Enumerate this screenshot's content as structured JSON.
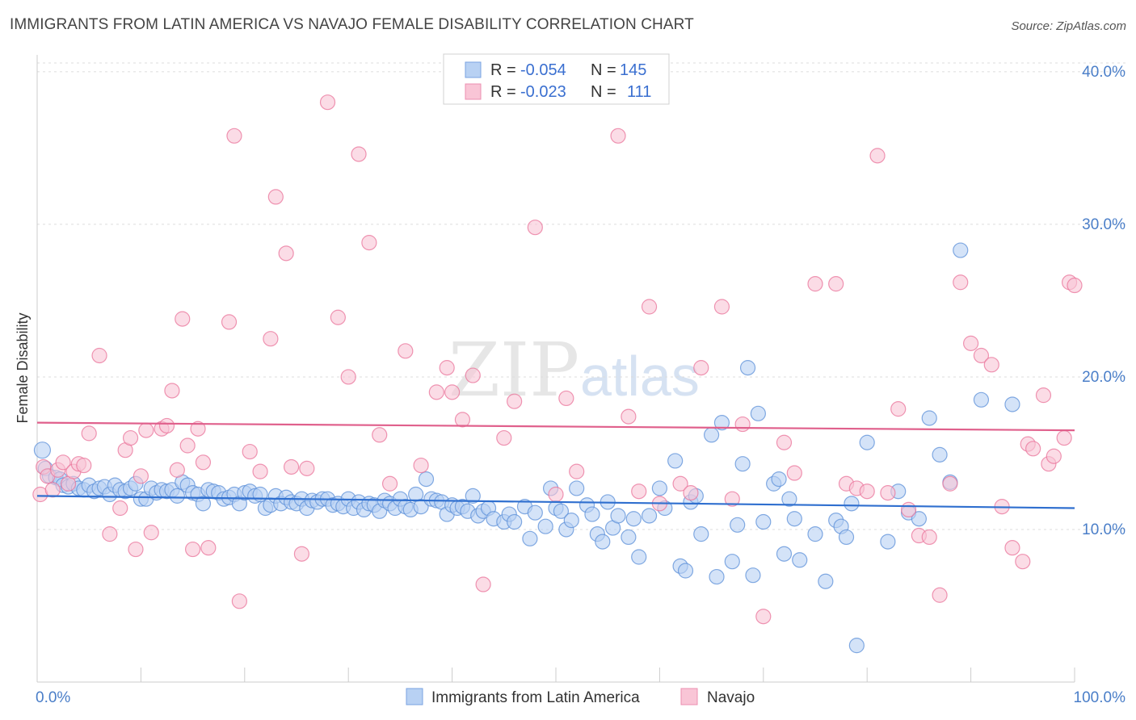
{
  "title": "IMMIGRANTS FROM LATIN AMERICA VS NAVAJO FEMALE DISABILITY CORRELATION CHART",
  "source": "Source: ZipAtlas.com",
  "watermark": {
    "zip": "ZIP",
    "atlas": "atlas"
  },
  "legend": {
    "r_label": "R =",
    "n_label": "N =",
    "rows": [
      {
        "r": "-0.054",
        "n": "145",
        "color": "#a9c6f0"
      },
      {
        "r": "-0.023",
        "n": "111",
        "color": "#f7bcd0"
      }
    ]
  },
  "bottom_legend": [
    "Immigrants from Latin America",
    "Navajo"
  ],
  "chart_data": {
    "type": "scatter",
    "xlabel": "",
    "ylabel": "Female Disability",
    "xlim": [
      0,
      100
    ],
    "ylim": [
      0,
      41
    ],
    "x_tick_labels": [
      "0.0%",
      "100.0%"
    ],
    "y_ticks": [
      10,
      20,
      30,
      40
    ],
    "y_tick_labels": [
      "10.0%",
      "20.0%",
      "30.0%",
      "40.0%"
    ],
    "series": [
      {
        "name": "Immigrants from Latin America",
        "color": "#5b8fd8",
        "fill": "#b8d1f3",
        "trend": [
          [
            0,
            12.2
          ],
          [
            100,
            11.4
          ]
        ],
        "points": [
          [
            0.5,
            15.2
          ],
          [
            0.8,
            14.0
          ],
          [
            1.2,
            13.5
          ],
          [
            1.8,
            13.4
          ],
          [
            2.2,
            13.3
          ],
          [
            2.5,
            12.9
          ],
          [
            3.0,
            12.8
          ],
          [
            3.5,
            13.0
          ],
          [
            4.0,
            12.7
          ],
          [
            4.5,
            12.6
          ],
          [
            5.0,
            12.9
          ],
          [
            5.5,
            12.5
          ],
          [
            6.0,
            12.7
          ],
          [
            6.5,
            12.8
          ],
          [
            7.0,
            12.3
          ],
          [
            7.5,
            12.9
          ],
          [
            8.0,
            12.6
          ],
          [
            8.5,
            12.5
          ],
          [
            9.0,
            12.7
          ],
          [
            9.5,
            13.0
          ],
          [
            10.0,
            12.0
          ],
          [
            10.5,
            12.0
          ],
          [
            11.0,
            12.7
          ],
          [
            11.5,
            12.4
          ],
          [
            12.0,
            12.6
          ],
          [
            12.5,
            12.5
          ],
          [
            13.0,
            12.6
          ],
          [
            13.5,
            12.2
          ],
          [
            14.0,
            13.1
          ],
          [
            14.5,
            12.9
          ],
          [
            15.0,
            12.4
          ],
          [
            15.5,
            12.3
          ],
          [
            16.0,
            11.7
          ],
          [
            16.5,
            12.6
          ],
          [
            17.0,
            12.5
          ],
          [
            17.5,
            12.4
          ],
          [
            18.0,
            12.0
          ],
          [
            18.5,
            12.1
          ],
          [
            19.0,
            12.3
          ],
          [
            19.5,
            11.7
          ],
          [
            20.0,
            12.4
          ],
          [
            20.5,
            12.5
          ],
          [
            21.0,
            12.2
          ],
          [
            21.5,
            12.3
          ],
          [
            22.0,
            11.4
          ],
          [
            22.5,
            11.6
          ],
          [
            23.0,
            12.2
          ],
          [
            23.5,
            11.7
          ],
          [
            24.0,
            12.1
          ],
          [
            24.5,
            11.8
          ],
          [
            25.0,
            11.7
          ],
          [
            25.5,
            12.0
          ],
          [
            26.0,
            11.4
          ],
          [
            26.5,
            11.9
          ],
          [
            27.0,
            11.8
          ],
          [
            27.5,
            12.0
          ],
          [
            28.0,
            12.0
          ],
          [
            28.5,
            11.6
          ],
          [
            29.0,
            11.7
          ],
          [
            29.5,
            11.5
          ],
          [
            30.0,
            12.0
          ],
          [
            30.5,
            11.4
          ],
          [
            31.0,
            11.8
          ],
          [
            31.5,
            11.3
          ],
          [
            32.0,
            11.7
          ],
          [
            32.5,
            11.6
          ],
          [
            33.0,
            11.2
          ],
          [
            33.5,
            11.9
          ],
          [
            34.0,
            11.7
          ],
          [
            34.5,
            11.4
          ],
          [
            35.0,
            12.0
          ],
          [
            35.5,
            11.5
          ],
          [
            36.0,
            11.3
          ],
          [
            36.5,
            12.3
          ],
          [
            37.0,
            11.5
          ],
          [
            37.5,
            13.3
          ],
          [
            38.0,
            12.0
          ],
          [
            38.5,
            11.9
          ],
          [
            39.0,
            11.8
          ],
          [
            39.5,
            11.0
          ],
          [
            40.0,
            11.6
          ],
          [
            40.5,
            11.4
          ],
          [
            41.0,
            11.5
          ],
          [
            41.5,
            11.2
          ],
          [
            42.0,
            12.2
          ],
          [
            42.5,
            10.9
          ],
          [
            43.0,
            11.2
          ],
          [
            43.5,
            11.4
          ],
          [
            44.0,
            10.7
          ],
          [
            45.0,
            10.5
          ],
          [
            45.5,
            11.0
          ],
          [
            46.0,
            10.5
          ],
          [
            47.0,
            11.5
          ],
          [
            47.5,
            9.4
          ],
          [
            48.0,
            11.1
          ],
          [
            49.0,
            10.2
          ],
          [
            49.5,
            12.7
          ],
          [
            50.0,
            11.4
          ],
          [
            50.5,
            11.2
          ],
          [
            51.0,
            10.0
          ],
          [
            51.5,
            10.6
          ],
          [
            52.0,
            12.7
          ],
          [
            53.0,
            11.6
          ],
          [
            53.5,
            11.0
          ],
          [
            54.0,
            9.7
          ],
          [
            54.5,
            9.2
          ],
          [
            55.0,
            11.8
          ],
          [
            55.5,
            10.1
          ],
          [
            56.0,
            10.9
          ],
          [
            57.0,
            9.5
          ],
          [
            57.5,
            10.7
          ],
          [
            58.0,
            8.2
          ],
          [
            59.0,
            10.9
          ],
          [
            60.0,
            12.7
          ],
          [
            60.5,
            11.4
          ],
          [
            61.5,
            14.5
          ],
          [
            62.0,
            7.6
          ],
          [
            62.5,
            7.3
          ],
          [
            63.0,
            11.8
          ],
          [
            63.5,
            12.2
          ],
          [
            64.0,
            9.7
          ],
          [
            65.0,
            16.2
          ],
          [
            65.5,
            6.9
          ],
          [
            66.0,
            17.0
          ],
          [
            67.0,
            7.9
          ],
          [
            67.5,
            10.3
          ],
          [
            68.0,
            14.3
          ],
          [
            68.5,
            20.6
          ],
          [
            69.0,
            7.0
          ],
          [
            69.5,
            17.6
          ],
          [
            70.0,
            10.5
          ],
          [
            71.0,
            13.0
          ],
          [
            71.5,
            13.3
          ],
          [
            72.0,
            8.4
          ],
          [
            72.5,
            12.0
          ],
          [
            73.0,
            10.7
          ],
          [
            73.5,
            8.0
          ],
          [
            75.0,
            9.7
          ],
          [
            76.0,
            6.6
          ],
          [
            77.0,
            10.6
          ],
          [
            77.5,
            10.2
          ],
          [
            78.0,
            9.5
          ],
          [
            78.5,
            11.7
          ],
          [
            79.0,
            2.4
          ],
          [
            80.0,
            15.7
          ],
          [
            82.0,
            9.2
          ],
          [
            83.0,
            12.5
          ],
          [
            84.0,
            11.1
          ],
          [
            85.0,
            10.7
          ],
          [
            86.0,
            17.3
          ],
          [
            87.0,
            14.9
          ],
          [
            88.0,
            13.1
          ],
          [
            89.0,
            28.3
          ],
          [
            91.0,
            18.5
          ],
          [
            94.0,
            18.2
          ]
        ]
      },
      {
        "name": "Navajo",
        "color": "#e9739a",
        "fill": "#f9c5d6",
        "trend": [
          [
            0,
            17.0
          ],
          [
            100,
            16.5
          ]
        ],
        "points": [
          [
            0.3,
            12.3
          ],
          [
            0.6,
            14.1
          ],
          [
            1.0,
            13.5
          ],
          [
            1.5,
            12.6
          ],
          [
            2.0,
            13.9
          ],
          [
            2.5,
            14.4
          ],
          [
            3.0,
            13.0
          ],
          [
            3.5,
            13.8
          ],
          [
            4.0,
            14.3
          ],
          [
            4.5,
            14.2
          ],
          [
            5.0,
            16.3
          ],
          [
            6.0,
            21.4
          ],
          [
            7.0,
            9.7
          ],
          [
            8.0,
            11.4
          ],
          [
            8.5,
            15.2
          ],
          [
            9.0,
            16.0
          ],
          [
            9.5,
            8.7
          ],
          [
            10.0,
            13.5
          ],
          [
            10.5,
            16.5
          ],
          [
            11.0,
            9.8
          ],
          [
            12.0,
            16.6
          ],
          [
            12.5,
            16.8
          ],
          [
            13.0,
            19.1
          ],
          [
            13.5,
            13.9
          ],
          [
            14.0,
            23.8
          ],
          [
            14.5,
            15.5
          ],
          [
            15.0,
            8.7
          ],
          [
            15.5,
            16.6
          ],
          [
            16.0,
            14.4
          ],
          [
            16.5,
            8.8
          ],
          [
            18.5,
            23.6
          ],
          [
            19.0,
            35.8
          ],
          [
            19.5,
            5.3
          ],
          [
            20.5,
            15.1
          ],
          [
            21.5,
            13.8
          ],
          [
            22.5,
            22.5
          ],
          [
            23.0,
            31.8
          ],
          [
            24.0,
            28.1
          ],
          [
            24.5,
            14.1
          ],
          [
            25.5,
            8.4
          ],
          [
            26.0,
            14.0
          ],
          [
            28.0,
            38.0
          ],
          [
            29.0,
            23.9
          ],
          [
            30.0,
            20.0
          ],
          [
            31.0,
            34.6
          ],
          [
            32.0,
            28.8
          ],
          [
            33.0,
            16.2
          ],
          [
            34.0,
            13.0
          ],
          [
            35.5,
            21.7
          ],
          [
            37.0,
            14.2
          ],
          [
            38.5,
            19.0
          ],
          [
            39.5,
            20.6
          ],
          [
            40.0,
            19.0
          ],
          [
            41.0,
            17.2
          ],
          [
            42.0,
            20.1
          ],
          [
            43.0,
            6.4
          ],
          [
            45.0,
            16.0
          ],
          [
            46.0,
            18.4
          ],
          [
            48.0,
            29.8
          ],
          [
            50.0,
            12.3
          ],
          [
            51.0,
            18.6
          ],
          [
            52.0,
            13.8
          ],
          [
            56.0,
            35.8
          ],
          [
            57.0,
            17.4
          ],
          [
            58.0,
            12.5
          ],
          [
            59.0,
            24.6
          ],
          [
            60.0,
            11.7
          ],
          [
            62.0,
            13.0
          ],
          [
            63.0,
            12.4
          ],
          [
            64.0,
            20.6
          ],
          [
            66.0,
            24.6
          ],
          [
            67.0,
            12.0
          ],
          [
            68.0,
            16.9
          ],
          [
            70.0,
            4.3
          ],
          [
            72.0,
            15.7
          ],
          [
            73.0,
            13.7
          ],
          [
            75.0,
            26.1
          ],
          [
            77.0,
            26.1
          ],
          [
            78.0,
            13.0
          ],
          [
            79.0,
            12.7
          ],
          [
            80.0,
            12.5
          ],
          [
            81.0,
            34.5
          ],
          [
            82.0,
            12.4
          ],
          [
            83.0,
            17.9
          ],
          [
            84.0,
            11.3
          ],
          [
            85.0,
            9.6
          ],
          [
            86.0,
            9.5
          ],
          [
            87.0,
            5.7
          ],
          [
            88.0,
            13.0
          ],
          [
            89.0,
            26.2
          ],
          [
            90.0,
            22.2
          ],
          [
            91.0,
            21.4
          ],
          [
            92.0,
            20.8
          ],
          [
            93.0,
            11.5
          ],
          [
            94.0,
            8.8
          ],
          [
            95.0,
            7.9
          ],
          [
            95.5,
            15.6
          ],
          [
            96.0,
            15.3
          ],
          [
            97.0,
            18.8
          ],
          [
            97.5,
            14.3
          ],
          [
            98.0,
            14.8
          ],
          [
            99.0,
            16.0
          ],
          [
            99.5,
            26.2
          ],
          [
            100.0,
            26.0
          ]
        ]
      }
    ]
  }
}
